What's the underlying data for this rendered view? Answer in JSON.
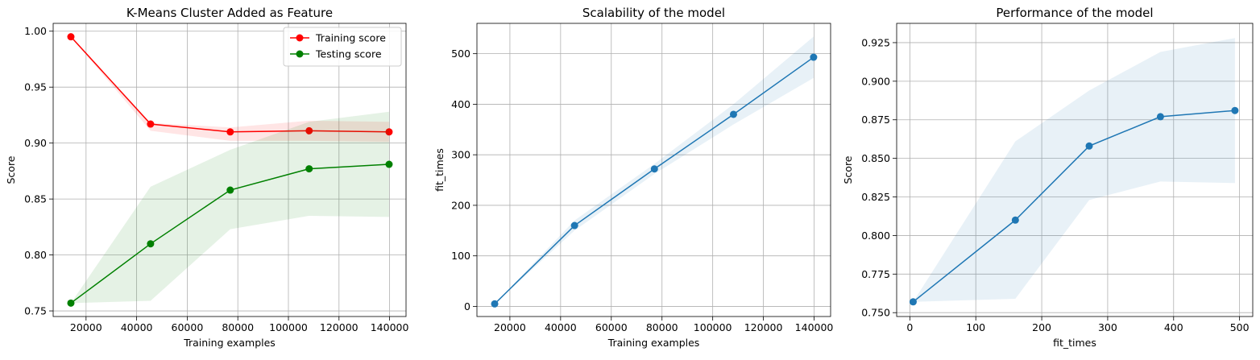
{
  "chart_data": [
    {
      "type": "line",
      "title": "K-Means Cluster Added as Feature",
      "xlabel": "Training examples",
      "ylabel": "Score",
      "xlim": [
        7000,
        146500
      ],
      "ylim": [
        0.745,
        1.007
      ],
      "xticks": [
        20000,
        40000,
        60000,
        80000,
        100000,
        120000,
        140000
      ],
      "xtick_labels": [
        "20000",
        "40000",
        "60000",
        "80000",
        "100000",
        "120000",
        "140000"
      ],
      "yticks": [
        0.75,
        0.8,
        0.85,
        0.9,
        0.95,
        1.0
      ],
      "ytick_labels": [
        "0.75",
        "0.80",
        "0.85",
        "0.90",
        "0.95",
        "1.00"
      ],
      "grid": true,
      "legend_position": "top-right",
      "x": [
        14000,
        45500,
        77000,
        108200,
        139800
      ],
      "series": [
        {
          "name": "Training score",
          "color": "#ff0000",
          "band_color": "#ff0000",
          "values": [
            0.995,
            0.917,
            0.91,
            0.911,
            0.91
          ],
          "band_lower": [
            0.995,
            0.911,
            0.902,
            0.902,
            0.901
          ],
          "band_upper": [
            0.995,
            0.918,
            0.914,
            0.92,
            0.919
          ]
        },
        {
          "name": "Testing score",
          "color": "#008000",
          "band_color": "#008000",
          "values": [
            0.757,
            0.81,
            0.858,
            0.877,
            0.881
          ],
          "band_lower": [
            0.757,
            0.759,
            0.823,
            0.835,
            0.834
          ],
          "band_upper": [
            0.757,
            0.861,
            0.894,
            0.919,
            0.928
          ]
        }
      ]
    },
    {
      "type": "line",
      "title": "Scalability of the model",
      "xlabel": "Training examples",
      "ylabel": "fit_times",
      "xlim": [
        7000,
        146500
      ],
      "ylim": [
        -20,
        560
      ],
      "xticks": [
        20000,
        40000,
        60000,
        80000,
        100000,
        120000,
        140000
      ],
      "xtick_labels": [
        "20000",
        "40000",
        "60000",
        "80000",
        "100000",
        "120000",
        "140000"
      ],
      "yticks": [
        0,
        100,
        200,
        300,
        400,
        500
      ],
      "ytick_labels": [
        "0",
        "100",
        "200",
        "300",
        "400",
        "500"
      ],
      "grid": true,
      "x": [
        14000,
        45500,
        77000,
        108200,
        139800
      ],
      "series": [
        {
          "color": "#1f77b4",
          "band_color": "#1f77b4",
          "values": [
            5,
            160,
            272,
            380,
            493
          ],
          "band_lower": [
            5,
            150,
            262,
            360,
            452
          ],
          "band_upper": [
            5,
            170,
            282,
            400,
            534
          ]
        }
      ]
    },
    {
      "type": "line",
      "title": "Performance of the model",
      "xlabel": "fit_times",
      "ylabel": "Score",
      "xlim": [
        -20,
        520
      ],
      "ylim": [
        0.7475,
        0.9375
      ],
      "xticks": [
        0,
        100,
        200,
        300,
        400,
        500
      ],
      "xtick_labels": [
        "0",
        "100",
        "200",
        "300",
        "400",
        "500"
      ],
      "yticks": [
        0.75,
        0.775,
        0.8,
        0.825,
        0.85,
        0.875,
        0.9,
        0.925
      ],
      "ytick_labels": [
        "0.750",
        "0.775",
        "0.800",
        "0.825",
        "0.850",
        "0.875",
        "0.900",
        "0.925"
      ],
      "grid": true,
      "x": [
        5,
        160,
        272,
        380,
        493
      ],
      "series": [
        {
          "color": "#1f77b4",
          "band_color": "#1f77b4",
          "values": [
            0.757,
            0.81,
            0.858,
            0.877,
            0.881
          ],
          "band_lower": [
            0.757,
            0.759,
            0.823,
            0.835,
            0.834
          ],
          "band_upper": [
            0.757,
            0.861,
            0.894,
            0.919,
            0.928
          ]
        }
      ]
    }
  ]
}
